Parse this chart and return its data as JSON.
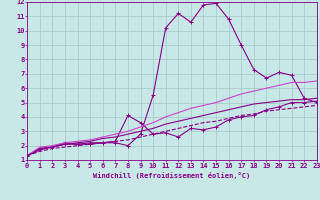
{
  "xlabel": "Windchill (Refroidissement éolien,°C)",
  "xlim": [
    0,
    23
  ],
  "ylim": [
    1,
    12
  ],
  "xticks": [
    0,
    1,
    2,
    3,
    4,
    5,
    6,
    7,
    8,
    9,
    10,
    11,
    12,
    13,
    14,
    15,
    16,
    17,
    18,
    19,
    20,
    21,
    22,
    23
  ],
  "yticks": [
    1,
    2,
    3,
    4,
    5,
    6,
    7,
    8,
    9,
    10,
    11,
    12
  ],
  "background_color": "#c8e8e8",
  "grid_color": "#aacccc",
  "line_color": "#880088",
  "line_color2": "#cc44cc",
  "curve1_x": [
    0,
    1,
    2,
    3,
    4,
    5,
    6,
    7,
    8,
    9,
    10,
    11,
    12,
    13,
    14,
    15,
    16,
    17,
    18,
    19,
    20,
    21,
    22,
    23
  ],
  "curve1_y": [
    1.3,
    1.8,
    1.9,
    2.1,
    2.1,
    2.1,
    2.2,
    2.2,
    2.0,
    2.8,
    5.5,
    10.2,
    11.2,
    10.6,
    11.8,
    11.9,
    10.8,
    9.0,
    7.3,
    6.7,
    7.1,
    6.9,
    5.3,
    5.0
  ],
  "curve2_x": [
    0,
    1,
    2,
    3,
    4,
    5,
    6,
    7,
    8,
    9,
    10,
    11,
    12,
    13,
    14,
    15,
    16,
    17,
    18,
    19,
    20,
    21,
    22,
    23
  ],
  "curve2_y": [
    1.3,
    1.8,
    1.9,
    2.2,
    2.1,
    2.2,
    2.2,
    2.3,
    4.1,
    3.6,
    2.8,
    2.9,
    2.6,
    3.2,
    3.1,
    3.3,
    3.8,
    4.0,
    4.1,
    4.5,
    4.7,
    5.0,
    5.0,
    5.1
  ],
  "curve3_x": [
    0,
    1,
    2,
    3,
    4,
    5,
    6,
    7,
    8,
    9,
    10,
    11,
    12,
    13,
    14,
    15,
    16,
    17,
    18,
    19,
    20,
    21,
    22,
    23
  ],
  "curve3_y": [
    1.3,
    1.9,
    2.0,
    2.2,
    2.3,
    2.4,
    2.6,
    2.8,
    3.0,
    3.3,
    3.6,
    4.0,
    4.3,
    4.6,
    4.8,
    5.0,
    5.3,
    5.6,
    5.8,
    6.0,
    6.2,
    6.4,
    6.4,
    6.5
  ],
  "curve4_x": [
    0,
    1,
    2,
    3,
    4,
    5,
    6,
    7,
    8,
    9,
    10,
    11,
    12,
    13,
    14,
    15,
    16,
    17,
    18,
    19,
    20,
    21,
    22,
    23
  ],
  "curve4_y": [
    1.3,
    1.7,
    1.9,
    2.1,
    2.2,
    2.3,
    2.5,
    2.6,
    2.8,
    3.0,
    3.2,
    3.5,
    3.7,
    3.9,
    4.1,
    4.3,
    4.5,
    4.7,
    4.9,
    5.0,
    5.1,
    5.2,
    5.2,
    5.3
  ],
  "curve5_x": [
    0,
    1,
    2,
    3,
    4,
    5,
    6,
    7,
    8,
    9,
    10,
    11,
    12,
    13,
    14,
    15,
    16,
    17,
    18,
    19,
    20,
    21,
    22,
    23
  ],
  "curve5_y": [
    1.3,
    1.6,
    1.8,
    1.9,
    2.0,
    2.1,
    2.2,
    2.3,
    2.4,
    2.6,
    2.8,
    3.0,
    3.2,
    3.4,
    3.6,
    3.7,
    3.9,
    4.1,
    4.2,
    4.4,
    4.5,
    4.6,
    4.7,
    4.8
  ]
}
